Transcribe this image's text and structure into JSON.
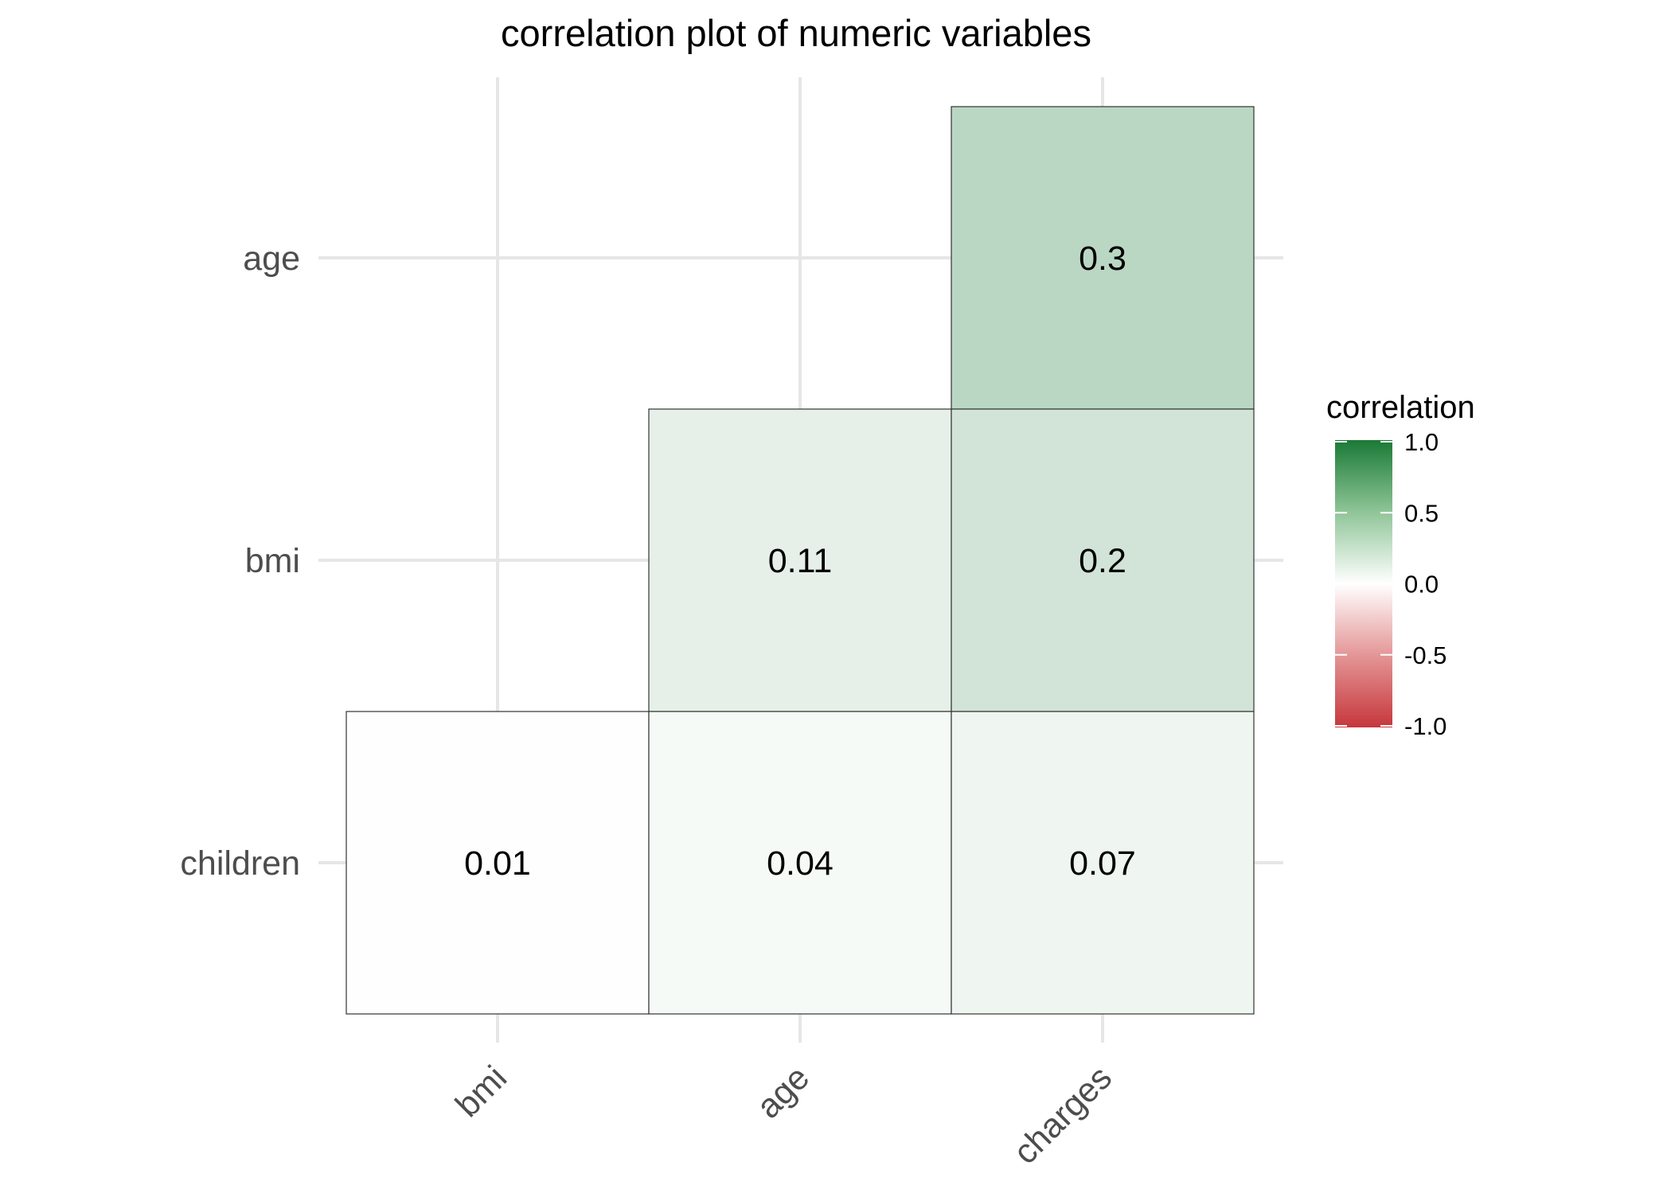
{
  "chart_data": {
    "type": "heatmap",
    "title": "correlation plot of numeric variables",
    "x_categories": [
      "bmi",
      "age",
      "charges"
    ],
    "y_categories": [
      "age",
      "bmi",
      "children"
    ],
    "cells": [
      {
        "x": "charges",
        "y": "age",
        "value": 0.3,
        "label": "0.3"
      },
      {
        "x": "age",
        "y": "bmi",
        "value": 0.11,
        "label": "0.11"
      },
      {
        "x": "charges",
        "y": "bmi",
        "value": 0.2,
        "label": "0.2"
      },
      {
        "x": "bmi",
        "y": "children",
        "value": 0.01,
        "label": "0.01"
      },
      {
        "x": "age",
        "y": "children",
        "value": 0.04,
        "label": "0.04"
      },
      {
        "x": "charges",
        "y": "children",
        "value": 0.07,
        "label": "0.07"
      }
    ],
    "legend": {
      "title": "correlation",
      "ticks": [
        "1.0",
        "0.5",
        "0.0",
        "-0.5",
        "-1.0"
      ],
      "tick_values": [
        1.0,
        0.5,
        0.0,
        -0.5,
        -1.0
      ],
      "limits": [
        -1,
        1
      ],
      "colors": {
        "low": "#c6373c",
        "mid": "#ffffff",
        "high": "#1a7a36"
      },
      "placement": "right"
    },
    "grid": true,
    "x_tick_rotation": "45 degrees"
  }
}
